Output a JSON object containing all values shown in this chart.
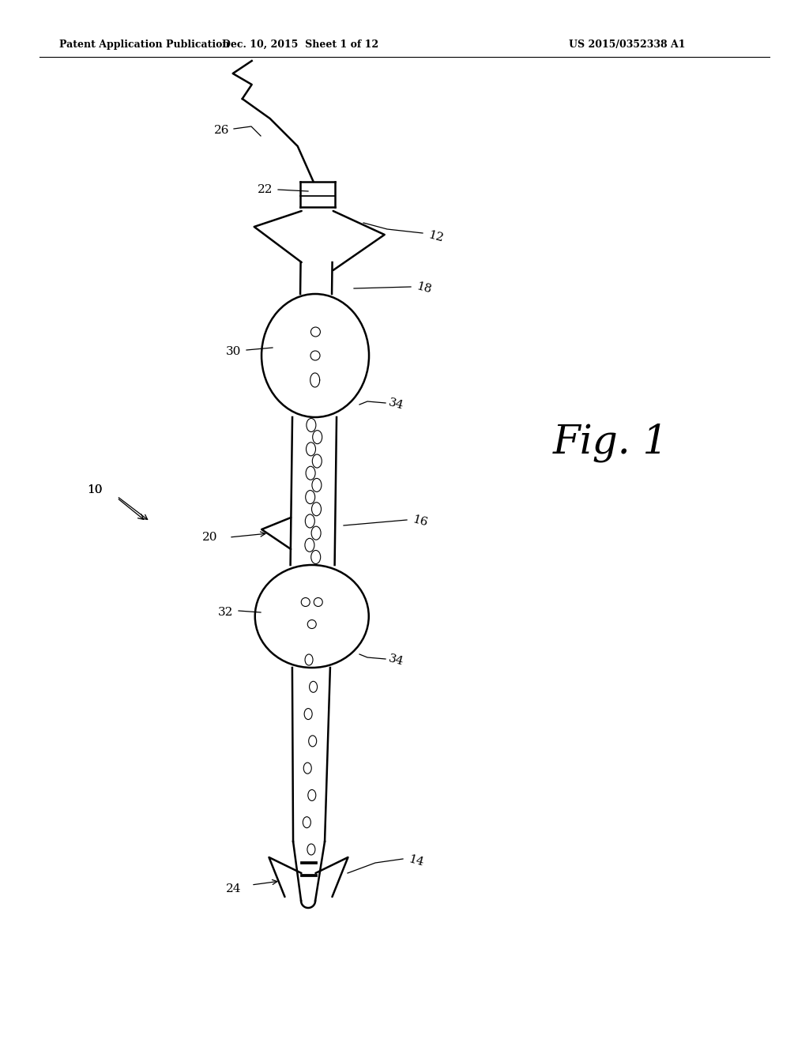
{
  "background_color": "#ffffff",
  "header_left": "Patent Application Publication",
  "header_center": "Dec. 10, 2015  Sheet 1 of 12",
  "header_right": "US 2015/0352338 A1",
  "figure_label": "Fig. 1",
  "catheter_color": "#000000",
  "line_width": 1.8,
  "label_fontsize": 11,
  "fig_label_fontsize": 36,
  "header_fontsize": 9
}
